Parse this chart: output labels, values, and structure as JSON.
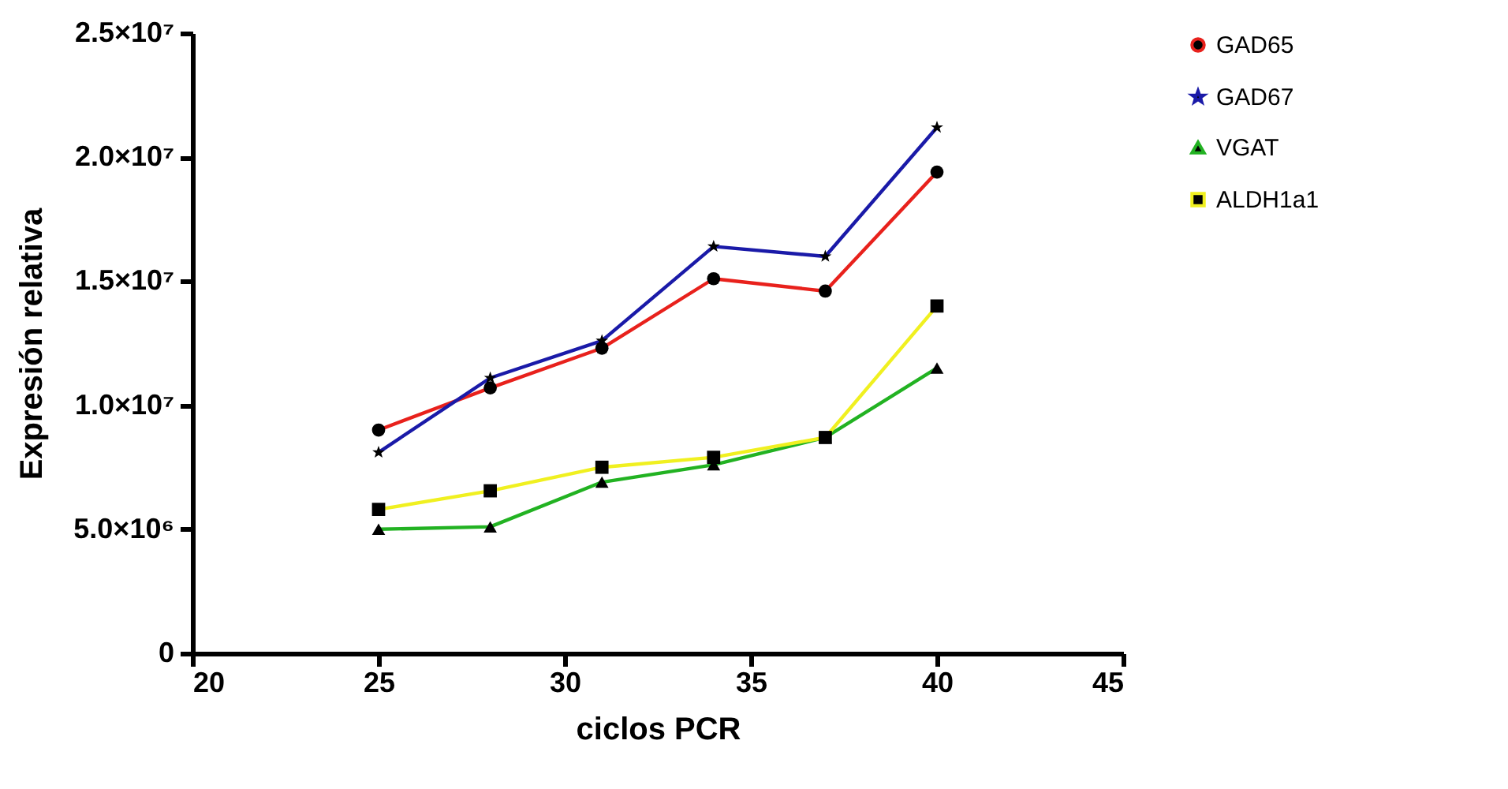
{
  "chart_data": {
    "type": "line",
    "xlabel": "ciclos PCR",
    "ylabel": "Expresión relativa",
    "x": [
      25,
      28,
      31,
      34,
      37,
      40
    ],
    "series": [
      {
        "name": "GAD65",
        "color": "#e8211c",
        "marker": "circle",
        "values": [
          9000000,
          10700000,
          12300000,
          15100000,
          14600000,
          19400000
        ]
      },
      {
        "name": "GAD67",
        "color": "#1a1aa8",
        "marker": "star",
        "values": [
          8100000,
          11100000,
          12600000,
          16400000,
          16000000,
          21200000
        ]
      },
      {
        "name": "VGAT",
        "color": "#22b222",
        "marker": "triangle",
        "values": [
          5000000,
          5100000,
          6900000,
          7600000,
          8700000,
          11500000
        ]
      },
      {
        "name": "ALDH1a1",
        "color": "#f0f020",
        "marker": "square",
        "values": [
          5800000,
          6550000,
          7500000,
          7900000,
          8700000,
          14000000
        ]
      }
    ],
    "xlim": [
      20,
      45
    ],
    "xticks": [
      20,
      25,
      30,
      35,
      40,
      45
    ],
    "ylim": [
      0,
      25000000
    ],
    "yticks": [
      0,
      {
        "value": 5000000,
        "label": "5.0×10⁶"
      },
      {
        "value": 10000000,
        "label": "1.0×10⁷"
      },
      {
        "value": 15000000,
        "label": "1.5×10⁷"
      },
      {
        "value": 20000000,
        "label": "2.0×10⁷"
      },
      {
        "value": 25000000,
        "label": "2.5×10⁷"
      }
    ],
    "grid": false,
    "legend": "top right",
    "line_style": "solid"
  }
}
